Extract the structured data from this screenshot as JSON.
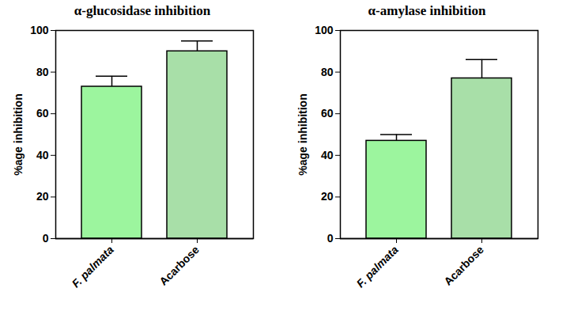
{
  "chart_data": [
    {
      "type": "bar",
      "title": "α-glucosidase inhibition",
      "y_label": "%age inhibition",
      "categories": [
        "F. palmata",
        "Acarbose"
      ],
      "values": [
        73,
        90
      ],
      "errors": [
        5,
        5
      ],
      "colors": [
        "#9cf59e",
        "#a8dfa8"
      ],
      "ylim": [
        0,
        100
      ],
      "yticks": [
        0,
        20,
        40,
        60,
        80,
        100
      ]
    },
    {
      "type": "bar",
      "title": "α-amylase inhibition",
      "y_label": "%age inhibition",
      "categories": [
        "F. palmata",
        "Acarbose"
      ],
      "values": [
        47,
        77
      ],
      "errors": [
        3,
        9
      ],
      "colors": [
        "#9cf59e",
        "#a8dfa8"
      ],
      "ylim": [
        0,
        100
      ],
      "yticks": [
        0,
        20,
        40,
        60,
        80,
        100
      ]
    }
  ]
}
